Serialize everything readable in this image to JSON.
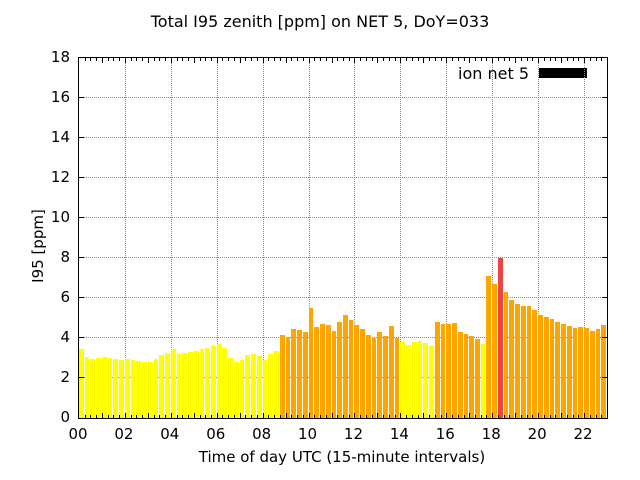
{
  "chart_data": {
    "type": "bar",
    "title": "Total I95 zenith [ppm] on NET 5, DoY=033",
    "xlabel": "Time of day UTC (15-minute intervals)",
    "ylabel": "I95 [ppm]",
    "ylim": [
      0,
      18
    ],
    "ytick_step": 2,
    "ytick_labels": [
      "0",
      "2",
      "4",
      "6",
      "8",
      "10",
      "12",
      "14",
      "16",
      "18"
    ],
    "xlim_hours": [
      0,
      23
    ],
    "xtick_hours": [
      0,
      2,
      4,
      6,
      8,
      10,
      12,
      14,
      16,
      18,
      20,
      22
    ],
    "xtick_labels": [
      "00",
      "02",
      "04",
      "06",
      "08",
      "10",
      "12",
      "14",
      "16",
      "18",
      "20",
      "22"
    ],
    "grid": true,
    "grid_color": "#8a8a8a",
    "interval_minutes": 15,
    "legend": {
      "label": "ion net 5",
      "swatch_color": "#000000",
      "position": "top-right"
    },
    "colors": {
      "y": "#ffff00",
      "o": "#ffa500",
      "r": "#ee4444"
    },
    "bars": [
      {
        "t": "00:00",
        "v": 3.45,
        "c": "y"
      },
      {
        "t": "00:15",
        "v": 3.05,
        "c": "y"
      },
      {
        "t": "00:30",
        "v": 2.95,
        "c": "y"
      },
      {
        "t": "00:45",
        "v": 3.0,
        "c": "y"
      },
      {
        "t": "01:00",
        "v": 3.05,
        "c": "y"
      },
      {
        "t": "01:15",
        "v": 3.0,
        "c": "y"
      },
      {
        "t": "01:30",
        "v": 2.95,
        "c": "y"
      },
      {
        "t": "01:45",
        "v": 2.9,
        "c": "y"
      },
      {
        "t": "02:00",
        "v": 2.95,
        "c": "y"
      },
      {
        "t": "02:15",
        "v": 2.9,
        "c": "y"
      },
      {
        "t": "02:30",
        "v": 2.85,
        "c": "y"
      },
      {
        "t": "02:45",
        "v": 2.8,
        "c": "y"
      },
      {
        "t": "03:00",
        "v": 2.8,
        "c": "y"
      },
      {
        "t": "03:15",
        "v": 2.95,
        "c": "y"
      },
      {
        "t": "03:30",
        "v": 3.15,
        "c": "y"
      },
      {
        "t": "03:45",
        "v": 3.25,
        "c": "y"
      },
      {
        "t": "04:00",
        "v": 3.45,
        "c": "y"
      },
      {
        "t": "04:15",
        "v": 3.2,
        "c": "y"
      },
      {
        "t": "04:30",
        "v": 3.25,
        "c": "y"
      },
      {
        "t": "04:45",
        "v": 3.3,
        "c": "y"
      },
      {
        "t": "05:00",
        "v": 3.35,
        "c": "y"
      },
      {
        "t": "05:15",
        "v": 3.45,
        "c": "y"
      },
      {
        "t": "05:30",
        "v": 3.5,
        "c": "y"
      },
      {
        "t": "05:45",
        "v": 3.6,
        "c": "y"
      },
      {
        "t": "06:00",
        "v": 3.7,
        "c": "y"
      },
      {
        "t": "06:15",
        "v": 3.5,
        "c": "y"
      },
      {
        "t": "06:30",
        "v": 3.0,
        "c": "y"
      },
      {
        "t": "06:45",
        "v": 2.8,
        "c": "y"
      },
      {
        "t": "07:00",
        "v": 2.9,
        "c": "y"
      },
      {
        "t": "07:15",
        "v": 3.15,
        "c": "y"
      },
      {
        "t": "07:30",
        "v": 3.2,
        "c": "y"
      },
      {
        "t": "07:45",
        "v": 3.1,
        "c": "y"
      },
      {
        "t": "08:00",
        "v": 2.9,
        "c": "y"
      },
      {
        "t": "08:15",
        "v": 3.2,
        "c": "y"
      },
      {
        "t": "08:30",
        "v": 3.35,
        "c": "y"
      },
      {
        "t": "08:45",
        "v": 4.15,
        "c": "o"
      },
      {
        "t": "09:00",
        "v": 4.05,
        "c": "o"
      },
      {
        "t": "09:15",
        "v": 4.45,
        "c": "o"
      },
      {
        "t": "09:30",
        "v": 4.4,
        "c": "o"
      },
      {
        "t": "09:45",
        "v": 4.3,
        "c": "o"
      },
      {
        "t": "10:00",
        "v": 5.5,
        "c": "o"
      },
      {
        "t": "10:15",
        "v": 4.55,
        "c": "o"
      },
      {
        "t": "10:30",
        "v": 4.7,
        "c": "o"
      },
      {
        "t": "10:45",
        "v": 4.65,
        "c": "o"
      },
      {
        "t": "11:00",
        "v": 4.35,
        "c": "o"
      },
      {
        "t": "11:15",
        "v": 4.8,
        "c": "o"
      },
      {
        "t": "11:30",
        "v": 5.15,
        "c": "o"
      },
      {
        "t": "11:45",
        "v": 4.9,
        "c": "o"
      },
      {
        "t": "12:00",
        "v": 4.65,
        "c": "o"
      },
      {
        "t": "12:15",
        "v": 4.45,
        "c": "o"
      },
      {
        "t": "12:30",
        "v": 4.15,
        "c": "o"
      },
      {
        "t": "12:45",
        "v": 4.0,
        "c": "o"
      },
      {
        "t": "13:00",
        "v": 4.3,
        "c": "o"
      },
      {
        "t": "13:15",
        "v": 4.1,
        "c": "o"
      },
      {
        "t": "13:30",
        "v": 4.6,
        "c": "o"
      },
      {
        "t": "13:45",
        "v": 4.0,
        "c": "o"
      },
      {
        "t": "14:00",
        "v": 3.8,
        "c": "y"
      },
      {
        "t": "14:15",
        "v": 3.65,
        "c": "y"
      },
      {
        "t": "14:30",
        "v": 3.8,
        "c": "y"
      },
      {
        "t": "14:45",
        "v": 3.85,
        "c": "y"
      },
      {
        "t": "15:00",
        "v": 3.75,
        "c": "y"
      },
      {
        "t": "15:15",
        "v": 3.6,
        "c": "y"
      },
      {
        "t": "15:30",
        "v": 4.8,
        "c": "o"
      },
      {
        "t": "15:45",
        "v": 4.7,
        "c": "o"
      },
      {
        "t": "16:00",
        "v": 4.7,
        "c": "o"
      },
      {
        "t": "16:15",
        "v": 4.75,
        "c": "o"
      },
      {
        "t": "16:30",
        "v": 4.3,
        "c": "o"
      },
      {
        "t": "16:45",
        "v": 4.2,
        "c": "o"
      },
      {
        "t": "17:00",
        "v": 4.1,
        "c": "o"
      },
      {
        "t": "17:15",
        "v": 3.95,
        "c": "o"
      },
      {
        "t": "17:30",
        "v": 3.7,
        "c": "y"
      },
      {
        "t": "17:45",
        "v": 7.1,
        "c": "o"
      },
      {
        "t": "18:00",
        "v": 6.7,
        "c": "o"
      },
      {
        "t": "18:15",
        "v": 8.0,
        "c": "r"
      },
      {
        "t": "18:30",
        "v": 6.3,
        "c": "o"
      },
      {
        "t": "18:45",
        "v": 5.9,
        "c": "o"
      },
      {
        "t": "19:00",
        "v": 5.7,
        "c": "o"
      },
      {
        "t": "19:15",
        "v": 5.6,
        "c": "o"
      },
      {
        "t": "19:30",
        "v": 5.6,
        "c": "o"
      },
      {
        "t": "19:45",
        "v": 5.4,
        "c": "o"
      },
      {
        "t": "20:00",
        "v": 5.15,
        "c": "o"
      },
      {
        "t": "20:15",
        "v": 5.05,
        "c": "o"
      },
      {
        "t": "20:30",
        "v": 4.95,
        "c": "o"
      },
      {
        "t": "20:45",
        "v": 4.8,
        "c": "o"
      },
      {
        "t": "21:00",
        "v": 4.7,
        "c": "o"
      },
      {
        "t": "21:15",
        "v": 4.6,
        "c": "o"
      },
      {
        "t": "21:30",
        "v": 4.5,
        "c": "o"
      },
      {
        "t": "21:45",
        "v": 4.55,
        "c": "o"
      },
      {
        "t": "22:00",
        "v": 4.5,
        "c": "o"
      },
      {
        "t": "22:15",
        "v": 4.35,
        "c": "o"
      },
      {
        "t": "22:30",
        "v": 4.45,
        "c": "o"
      },
      {
        "t": "22:45",
        "v": 4.65,
        "c": "o"
      }
    ]
  }
}
